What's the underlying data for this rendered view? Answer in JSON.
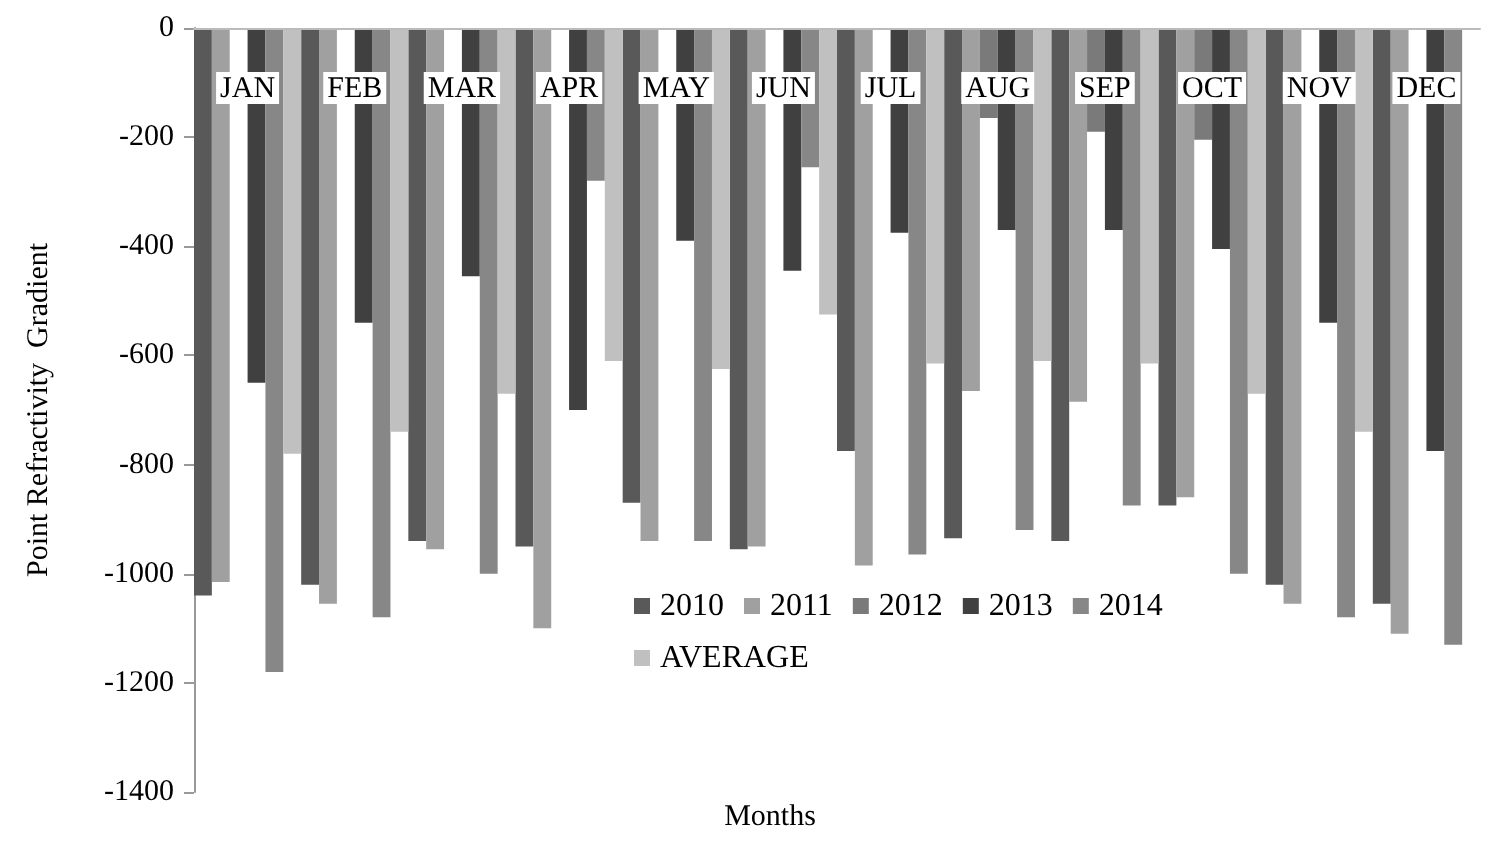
{
  "chart_data": {
    "type": "bar",
    "xlabel": "Months",
    "ylabel": "Point Refractivity  Gradient",
    "categories": [
      "JAN",
      "FEB",
      "MAR",
      "APR",
      "MAY",
      "JUN",
      "JUL",
      "AUG",
      "SEP",
      "OCT",
      "NOV",
      "DEC"
    ],
    "series": [
      {
        "name": "2010",
        "color": "#595959",
        "values": [
          -1040,
          -1020,
          -940,
          -950,
          -870,
          -955,
          -775,
          -935,
          -940,
          -875,
          -1020,
          -1055
        ]
      },
      {
        "name": "2011",
        "color": "#a0a0a0",
        "values": [
          -1015,
          -1055,
          -955,
          -1100,
          -940,
          -950,
          -985,
          -665,
          -685,
          -860,
          -1055,
          -1110
        ]
      },
      {
        "name": "2012",
        "color": "#7a7a7a",
        "values": [
          null,
          null,
          null,
          null,
          null,
          null,
          null,
          -165,
          -190,
          -205,
          null,
          null
        ]
      },
      {
        "name": "2013",
        "color": "#404040",
        "values": [
          -650,
          -540,
          -455,
          -700,
          -390,
          -445,
          -375,
          -370,
          -370,
          -405,
          -540,
          -775
        ]
      },
      {
        "name": "2014",
        "color": "#878787",
        "values": [
          -1180,
          -1080,
          -1000,
          -280,
          -940,
          -255,
          -965,
          -920,
          -875,
          -1000,
          -1080,
          -1130
        ]
      },
      {
        "name": "AVERAGE",
        "color": "#c0c0c0",
        "values": [
          -780,
          -740,
          -670,
          -610,
          -625,
          -525,
          -615,
          -610,
          -615,
          -670,
          -740,
          null
        ]
      }
    ],
    "ylim": [
      -1400,
      0
    ],
    "yticks": [
      0,
      -200,
      -400,
      -600,
      -800,
      -1000,
      -1200,
      -1400
    ],
    "grid": false,
    "legend": "bottom"
  }
}
